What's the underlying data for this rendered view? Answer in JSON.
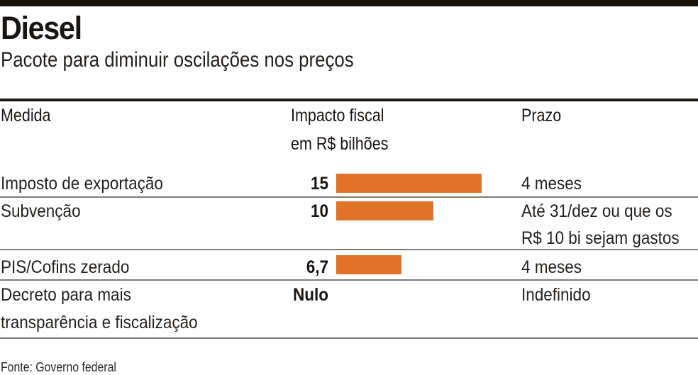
{
  "header": {
    "title": "Diesel",
    "subtitle": "Pacote para diminuir oscilações nos preços"
  },
  "table": {
    "columns": {
      "medida": "Medida",
      "impacto_line1": "Impacto fiscal",
      "impacto_line2": "em R$ bilhões",
      "prazo": "Prazo"
    },
    "rows": [
      {
        "medida": [
          "Imposto de exportação"
        ],
        "impacto_label": "15",
        "impacto_value": 15,
        "prazo": [
          "4 meses"
        ]
      },
      {
        "medida": [
          "Subvenção"
        ],
        "impacto_label": "10",
        "impacto_value": 10,
        "prazo": [
          "Até 31/dez ou que os",
          "R$ 10 bi sejam gastos"
        ]
      },
      {
        "medida": [
          "PIS/Cofins zerado"
        ],
        "impacto_label": "6,7",
        "impacto_value": 6.7,
        "prazo": [
          "4 meses"
        ]
      },
      {
        "medida": [
          "Decreto para mais",
          "transparência e fiscalização"
        ],
        "impacto_label": "Nulo",
        "impacto_value": null,
        "prazo": [
          "Indefinido"
        ]
      }
    ]
  },
  "source": "Fonte: Governo federal",
  "colors": {
    "bar": "#e07328",
    "text": "#1a1512",
    "rule": "#1f1711",
    "divider": "#7d7a77"
  },
  "chart_data": {
    "type": "bar",
    "orientation": "horizontal",
    "title": "Diesel",
    "subtitle": "Pacote para diminuir oscilações nos preços",
    "xlabel": "Impacto fiscal em R$ bilhões",
    "ylabel": "Medida",
    "categories": [
      "Imposto de exportação",
      "Subvenção",
      "PIS/Cofins zerado",
      "Decreto para mais transparência e fiscalização"
    ],
    "values": [
      15,
      10,
      6.7,
      null
    ],
    "data_labels": [
      "15",
      "10",
      "6,7",
      "Nulo"
    ],
    "xlim": [
      0,
      15
    ],
    "grid": false,
    "legend": "none"
  }
}
